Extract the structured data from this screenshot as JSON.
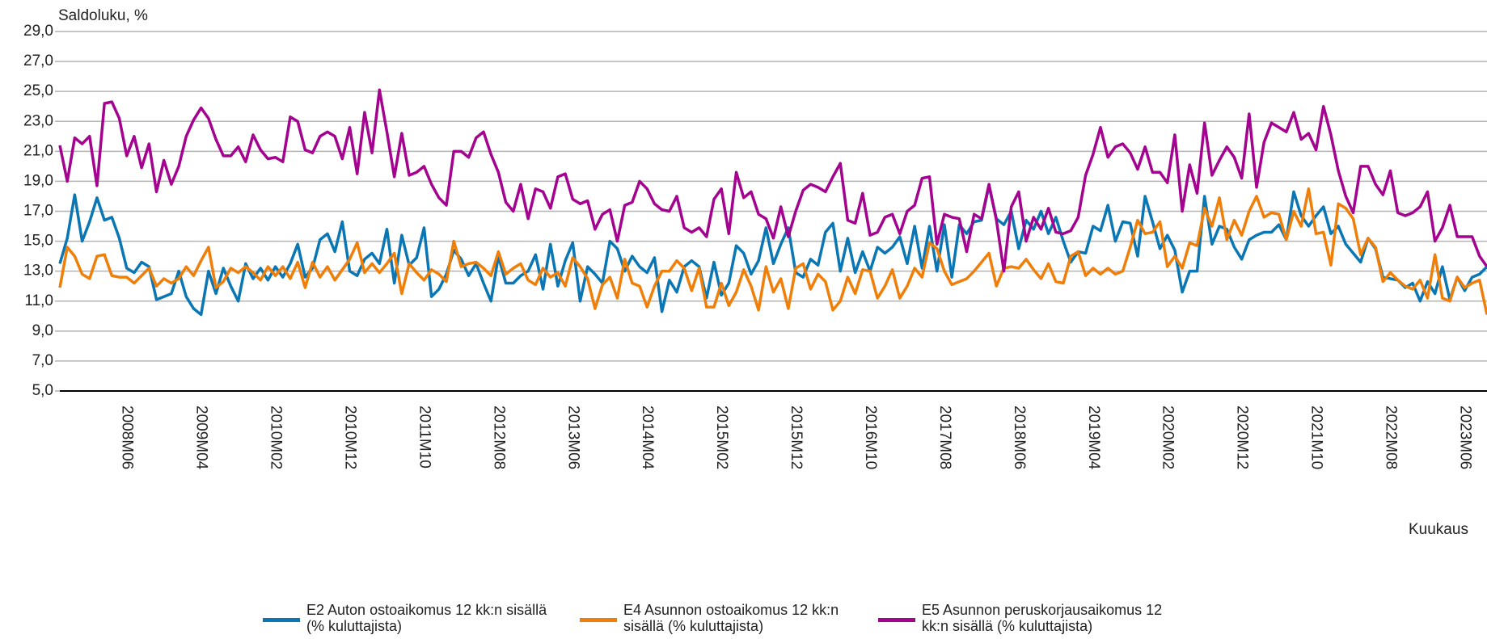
{
  "chart_data": {
    "type": "line",
    "title": "Saldoluku, %",
    "x_label": "Kuukaus",
    "categories": [
      null,
      null,
      null,
      null,
      null,
      null,
      null,
      null,
      null,
      "2008M06",
      null,
      null,
      null,
      null,
      null,
      null,
      null,
      null,
      null,
      "2009M04",
      null,
      null,
      null,
      null,
      null,
      null,
      null,
      null,
      null,
      "2010M02",
      null,
      null,
      null,
      null,
      null,
      null,
      null,
      null,
      null,
      "2010M12",
      null,
      null,
      null,
      null,
      null,
      null,
      null,
      null,
      null,
      "2011M10",
      null,
      null,
      null,
      null,
      null,
      null,
      null,
      null,
      null,
      "2012M08",
      null,
      null,
      null,
      null,
      null,
      null,
      null,
      null,
      null,
      "2013M06",
      null,
      null,
      null,
      null,
      null,
      null,
      null,
      null,
      null,
      "2014M04",
      null,
      null,
      null,
      null,
      null,
      null,
      null,
      null,
      null,
      "2015M02",
      null,
      null,
      null,
      null,
      null,
      null,
      null,
      null,
      null,
      "2015M12",
      null,
      null,
      null,
      null,
      null,
      null,
      null,
      null,
      null,
      "2016M10",
      null,
      null,
      null,
      null,
      null,
      null,
      null,
      null,
      null,
      "2017M08",
      null,
      null,
      null,
      null,
      null,
      null,
      null,
      null,
      null,
      "2018M06",
      null,
      null,
      null,
      null,
      null,
      null,
      null,
      null,
      null,
      "2019M04",
      null,
      null,
      null,
      null,
      null,
      null,
      null,
      null,
      null,
      "2020M02",
      null,
      null,
      null,
      null,
      null,
      null,
      null,
      null,
      null,
      "2020M12",
      null,
      null,
      null,
      null,
      null,
      null,
      null,
      null,
      null,
      "2021M10",
      null,
      null,
      null,
      null,
      null,
      null,
      null,
      null,
      null,
      "2022M08",
      null,
      null,
      null,
      null,
      null,
      null,
      null,
      null,
      null,
      "2023M06",
      null,
      null,
      null
    ],
    "series": [
      {
        "name": "E2 Auton ostoaikomus 12 kk:n sisällä (% kuluttajista)",
        "color": "#0a77b4",
        "values": [
          13.5,
          15.2,
          18.1,
          15.0,
          16.3,
          17.9,
          16.4,
          16.6,
          15.2,
          13.2,
          12.9,
          13.6,
          13.3,
          11.1,
          11.3,
          11.5,
          13.0,
          11.3,
          10.5,
          10.1,
          13.0,
          11.5,
          13.2,
          12.0,
          11.0,
          13.5,
          12.5,
          13.2,
          12.4,
          13.3,
          12.6,
          13.5,
          14.8,
          12.6,
          13.2,
          15.1,
          15.5,
          14.3,
          16.3,
          13.0,
          12.7,
          13.8,
          14.2,
          13.5,
          15.8,
          12.2,
          15.4,
          13.4,
          13.9,
          15.9,
          11.3,
          11.8,
          12.8,
          14.4,
          13.8,
          12.7,
          13.5,
          12.2,
          11.0,
          14.0,
          12.2,
          12.2,
          12.7,
          13.0,
          14.1,
          11.8,
          14.8,
          12.0,
          13.7,
          14.9,
          11.0,
          13.3,
          12.8,
          12.2,
          15.0,
          14.5,
          13.0,
          14.0,
          13.3,
          12.9,
          13.9,
          10.3,
          12.4,
          11.6,
          13.3,
          13.7,
          13.3,
          11.2,
          13.6,
          11.4,
          12.2,
          14.7,
          14.2,
          12.8,
          13.7,
          15.9,
          13.5,
          14.8,
          15.9,
          12.9,
          12.6,
          13.8,
          13.4,
          15.6,
          16.2,
          13.0,
          15.2,
          12.9,
          14.3,
          13.0,
          14.6,
          14.2,
          14.6,
          15.3,
          13.5,
          16.0,
          13.2,
          16.0,
          13.0,
          16.1,
          12.6,
          16.1,
          15.5,
          16.3,
          16.4,
          18.7,
          16.5,
          16.1,
          17.0,
          14.5,
          16.4,
          15.8,
          17.0,
          15.5,
          16.6,
          15.0,
          13.6,
          14.3,
          14.2,
          16.0,
          15.7,
          17.4,
          15.0,
          16.3,
          16.2,
          14.0,
          18.0,
          16.3,
          14.5,
          15.4,
          14.4,
          11.6,
          13.0,
          13.0,
          18.0,
          14.8,
          16.0,
          15.8,
          14.6,
          13.8,
          15.1,
          15.4,
          15.6,
          15.6,
          16.1,
          15.1,
          18.3,
          16.7,
          16.0,
          16.7,
          17.3,
          15.5,
          16.0,
          14.8,
          14.2,
          13.6,
          15.2,
          14.5,
          12.6,
          12.5,
          12.4,
          11.9,
          12.2,
          11.0,
          12.3,
          11.5,
          13.3,
          11.1,
          12.6,
          11.7,
          12.6,
          12.8,
          13.3
        ]
      },
      {
        "name": "E4 Asunnon ostoaikomus 12 kk:n sisällä (% kuluttajista)",
        "color": "#f07f0a",
        "values": [
          11.9,
          14.6,
          14.0,
          12.8,
          12.5,
          14.0,
          14.1,
          12.7,
          12.6,
          12.6,
          12.2,
          12.7,
          13.2,
          12.0,
          12.5,
          12.2,
          12.5,
          13.3,
          12.7,
          13.7,
          14.6,
          11.9,
          12.3,
          13.2,
          12.9,
          13.3,
          12.9,
          12.4,
          13.3,
          12.7,
          13.3,
          12.5,
          13.6,
          11.9,
          13.6,
          12.6,
          13.3,
          12.4,
          13.1,
          13.8,
          14.9,
          12.9,
          13.5,
          12.9,
          13.5,
          14.2,
          11.5,
          13.5,
          12.9,
          12.4,
          13.1,
          12.8,
          12.3,
          15.0,
          13.3,
          13.5,
          13.6,
          13.2,
          12.7,
          14.3,
          12.8,
          13.2,
          13.5,
          12.4,
          12.1,
          13.2,
          12.6,
          12.9,
          12.0,
          13.9,
          13.3,
          12.5,
          10.5,
          12.1,
          12.6,
          11.2,
          13.8,
          12.2,
          12.0,
          10.6,
          12.0,
          13.0,
          13.0,
          13.7,
          13.2,
          11.7,
          13.2,
          10.6,
          10.6,
          12.2,
          10.7,
          11.6,
          13.1,
          12.0,
          10.4,
          13.3,
          11.6,
          12.5,
          10.5,
          13.2,
          13.5,
          11.8,
          12.8,
          12.3,
          10.4,
          11.0,
          12.6,
          11.5,
          13.1,
          13.0,
          11.2,
          12.0,
          13.1,
          11.2,
          12.0,
          13.2,
          12.6,
          14.9,
          14.5,
          13.0,
          12.1,
          12.3,
          12.5,
          13.0,
          13.6,
          14.2,
          12.0,
          13.2,
          13.3,
          13.2,
          13.8,
          13.1,
          12.5,
          13.5,
          12.3,
          12.2,
          14.0,
          14.3,
          12.7,
          13.2,
          12.8,
          13.2,
          12.8,
          13.0,
          14.6,
          16.4,
          15.5,
          15.6,
          16.3,
          13.3,
          14.0,
          13.2,
          14.9,
          14.7,
          17.2,
          16.0,
          17.9,
          15.1,
          16.4,
          15.4,
          17.0,
          18.0,
          16.6,
          16.9,
          16.8,
          15.1,
          17.0,
          16.0,
          18.5,
          15.5,
          15.6,
          13.4,
          17.5,
          17.2,
          16.5,
          14.1,
          15.2,
          14.6,
          12.3,
          12.9,
          12.4,
          12.0,
          11.8,
          12.4,
          11.2,
          14.1,
          11.2,
          11.0,
          12.6,
          11.9,
          12.2,
          12.4,
          10.1
        ]
      },
      {
        "name": "E5 Asunnon peruskorjausaikomus 12 kk:n sisällä (% kuluttajista)",
        "color": "#a3038f",
        "values": [
          21.4,
          19.0,
          21.9,
          21.5,
          22.0,
          18.7,
          24.2,
          24.3,
          23.2,
          20.7,
          22.0,
          19.9,
          21.5,
          18.3,
          20.4,
          18.8,
          20.0,
          22.0,
          23.1,
          23.9,
          23.2,
          21.8,
          20.7,
          20.7,
          21.3,
          20.3,
          22.1,
          21.1,
          20.5,
          20.6,
          20.3,
          23.3,
          23.0,
          21.1,
          20.9,
          22.0,
          22.3,
          22.0,
          20.5,
          22.6,
          19.5,
          23.6,
          20.9,
          25.1,
          22.3,
          19.3,
          22.2,
          19.4,
          19.6,
          20.0,
          18.8,
          17.9,
          17.4,
          21.0,
          21.0,
          20.6,
          21.9,
          22.3,
          20.8,
          19.6,
          17.6,
          17.0,
          18.8,
          16.5,
          18.5,
          18.3,
          17.2,
          19.3,
          19.5,
          17.8,
          17.5,
          17.7,
          15.8,
          16.8,
          17.1,
          15.0,
          17.4,
          17.6,
          19.0,
          18.5,
          17.5,
          17.1,
          17.0,
          18.0,
          15.9,
          15.6,
          15.9,
          15.3,
          17.8,
          18.5,
          15.5,
          19.6,
          17.9,
          18.3,
          16.8,
          16.5,
          15.2,
          17.3,
          15.3,
          17.0,
          18.4,
          18.8,
          18.6,
          18.3,
          19.3,
          20.2,
          16.4,
          16.2,
          18.2,
          15.4,
          15.6,
          16.6,
          16.8,
          15.5,
          17.0,
          17.4,
          19.2,
          19.3,
          14.8,
          16.8,
          16.6,
          16.5,
          14.3,
          16.8,
          16.5,
          18.8,
          16.4,
          13.0,
          17.3,
          18.3,
          15.0,
          16.6,
          15.8,
          17.2,
          15.6,
          15.5,
          15.7,
          16.6,
          19.4,
          20.8,
          22.6,
          20.6,
          21.3,
          21.5,
          20.9,
          19.8,
          21.3,
          19.6,
          19.6,
          18.9,
          22.1,
          17.0,
          20.1,
          18.2,
          22.9,
          19.4,
          20.4,
          21.3,
          20.6,
          19.2,
          23.5,
          18.6,
          21.6,
          22.9,
          22.6,
          22.3,
          23.6,
          21.8,
          22.2,
          21.1,
          24.0,
          22.1,
          19.7,
          18.0,
          16.9,
          20.0,
          20.0,
          18.8,
          18.1,
          19.7,
          16.9,
          16.7,
          16.9,
          17.3,
          18.3,
          15.0,
          15.9,
          17.4,
          15.3,
          15.3,
          15.3,
          14.0,
          13.3
        ]
      }
    ],
    "ylim": [
      5,
      29
    ],
    "yticks": [
      {
        "value": 5,
        "label": "5,0"
      },
      {
        "value": 7,
        "label": "7,0"
      },
      {
        "value": 9,
        "label": "9,0"
      },
      {
        "value": 11,
        "label": "11,0"
      },
      {
        "value": 13,
        "label": "13,0"
      },
      {
        "value": 15,
        "label": "15,0"
      },
      {
        "value": 17,
        "label": "17,0"
      },
      {
        "value": 19,
        "label": "19,0"
      },
      {
        "value": 21,
        "label": "21,0"
      },
      {
        "value": 23,
        "label": "23,0"
      },
      {
        "value": 25,
        "label": "25,0"
      },
      {
        "value": 27,
        "label": "27,0"
      },
      {
        "value": 29,
        "label": "29,0"
      }
    ],
    "grid": true,
    "legend": "bottom"
  }
}
